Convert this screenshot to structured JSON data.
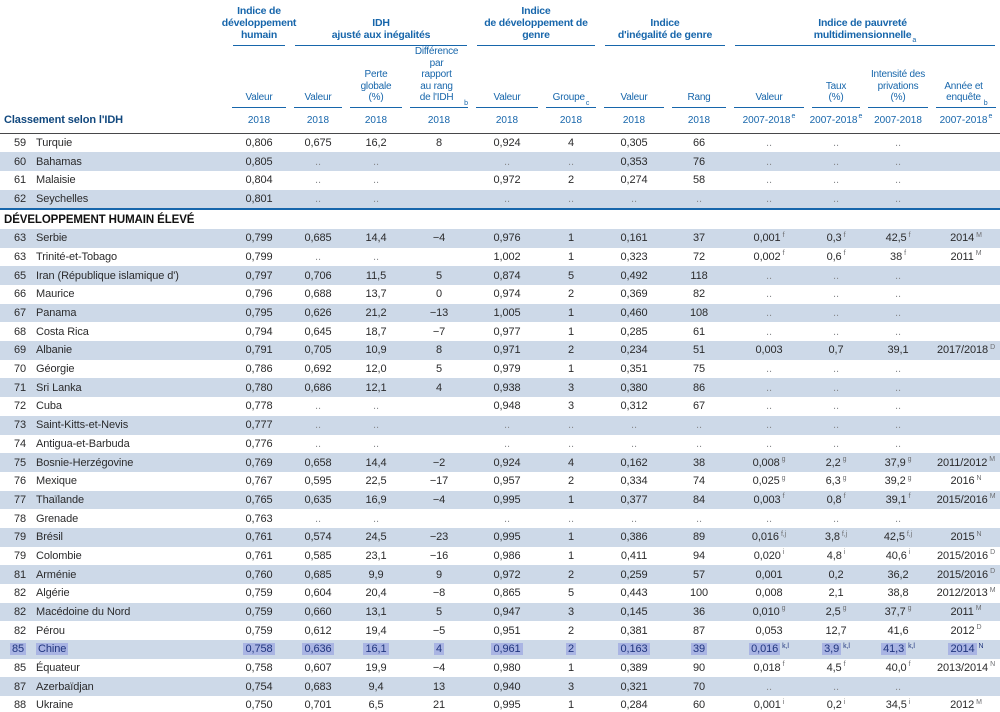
{
  "colors": {
    "header_blue": "#1766ab",
    "stripe": "#cdd9e8",
    "highlight_bg": "#a9b4e3",
    "highlight_text": "#20357e",
    "dark_rule": "#47484a"
  },
  "table": {
    "corner_label": "Classement selon l'IDH",
    "groups": [
      {
        "title": "Indice de\ndéveloppement\nhumain",
        "sup": ""
      },
      {
        "title": "IDH\najusté aux inégalités",
        "sup": ""
      },
      {
        "title": "Indice\nde développement de genre",
        "sup": ""
      },
      {
        "title": "Indice\nd'inégalité de genre",
        "sup": ""
      },
      {
        "title": "Indice de pauvreté\nmultidimensionnelle",
        "sup": "a"
      }
    ],
    "columns": [
      {
        "label": "Valeur",
        "sup": "",
        "year": "2018",
        "year_sup": ""
      },
      {
        "label": "Valeur",
        "sup": "",
        "year": "2018",
        "year_sup": ""
      },
      {
        "label": "Perte globale\n(%)",
        "sup": "",
        "year": "2018",
        "year_sup": ""
      },
      {
        "label": "Différence par\nrapport\nau rang\nde l'IDH",
        "sup": "b",
        "year": "2018",
        "year_sup": ""
      },
      {
        "label": "Valeur",
        "sup": "",
        "year": "2018",
        "year_sup": ""
      },
      {
        "label": "Groupe",
        "sup": "c",
        "year": "2018",
        "year_sup": ""
      },
      {
        "label": "Valeur",
        "sup": "",
        "year": "2018",
        "year_sup": ""
      },
      {
        "label": "Rang",
        "sup": "",
        "year": "2018",
        "year_sup": ""
      },
      {
        "label": "Valeur",
        "sup": "",
        "year": "2007-2018",
        "year_sup": "e"
      },
      {
        "label": "Taux\n(%)",
        "sup": "",
        "year": "2007-2018",
        "year_sup": "e"
      },
      {
        "label": "Intensité des\nprivations\n(%)",
        "sup": "",
        "year": "2007-2018",
        "year_sup": ""
      },
      {
        "label": "Année et\nenquête",
        "sup": "b",
        "year": "2007-2018",
        "year_sup": "e"
      }
    ],
    "rows": [
      {
        "rank": "59",
        "country": "Turquie",
        "stripe": false,
        "values": [
          "0,806",
          "0,675",
          "16,2",
          "8",
          "0,924",
          "4",
          "0,305",
          "66",
          "..",
          "..",
          "..",
          ""
        ]
      },
      {
        "rank": "60",
        "country": "Bahamas",
        "stripe": true,
        "values": [
          "0,805",
          "..",
          "..",
          "",
          "..",
          "..",
          "0,353",
          "76",
          "..",
          "..",
          "..",
          ""
        ]
      },
      {
        "rank": "61",
        "country": "Malaisie",
        "stripe": false,
        "values": [
          "0,804",
          "..",
          "..",
          "",
          "0,972",
          "2",
          "0,274",
          "58",
          "..",
          "..",
          "..",
          ""
        ]
      },
      {
        "rank": "62",
        "country": "Seychelles",
        "stripe": true,
        "divider": true,
        "values": [
          "0,801",
          "..",
          "..",
          "",
          "..",
          "..",
          "..",
          "..",
          "..",
          "..",
          "..",
          ""
        ]
      },
      {
        "section": "DÉVELOPPEMENT HUMAIN ÉLEVÉ"
      },
      {
        "rank": "63",
        "country": "Serbie",
        "stripe": true,
        "values": [
          "0,799",
          "0,685",
          "14,4",
          "−4",
          "0,976",
          "1",
          "0,161",
          "37",
          "0,001^f",
          "0,3^f",
          "42,5^f",
          "2014^M"
        ]
      },
      {
        "rank": "63",
        "country": "Trinité-et-Tobago",
        "stripe": false,
        "values": [
          "0,799",
          "..",
          "..",
          "",
          "1,002",
          "1",
          "0,323",
          "72",
          "0,002^f",
          "0,6^f",
          "38^f",
          "2011^M"
        ]
      },
      {
        "rank": "65",
        "country": "Iran (République islamique d')",
        "stripe": true,
        "values": [
          "0,797",
          "0,706",
          "11,5",
          "5",
          "0,874",
          "5",
          "0,492",
          "118",
          "..",
          "..",
          "..",
          ""
        ]
      },
      {
        "rank": "66",
        "country": "Maurice",
        "stripe": false,
        "values": [
          "0,796",
          "0,688",
          "13,7",
          "0",
          "0,974",
          "2",
          "0,369",
          "82",
          "..",
          "..",
          "..",
          ""
        ]
      },
      {
        "rank": "67",
        "country": "Panama",
        "stripe": true,
        "values": [
          "0,795",
          "0,626",
          "21,2",
          "−13",
          "1,005",
          "1",
          "0,460",
          "108",
          "..",
          "..",
          "..",
          ""
        ]
      },
      {
        "rank": "68",
        "country": "Costa Rica",
        "stripe": false,
        "values": [
          "0,794",
          "0,645",
          "18,7",
          "−7",
          "0,977",
          "1",
          "0,285",
          "61",
          "..",
          "..",
          "..",
          ""
        ]
      },
      {
        "rank": "69",
        "country": "Albanie",
        "stripe": true,
        "values": [
          "0,791",
          "0,705",
          "10,9",
          "8",
          "0,971",
          "2",
          "0,234",
          "51",
          "0,003",
          "0,7",
          "39,1",
          "2017/2018^D"
        ]
      },
      {
        "rank": "70",
        "country": "Géorgie",
        "stripe": false,
        "values": [
          "0,786",
          "0,692",
          "12,0",
          "5",
          "0,979",
          "1",
          "0,351",
          "75",
          "..",
          "..",
          "..",
          ""
        ]
      },
      {
        "rank": "71",
        "country": "Sri Lanka",
        "stripe": true,
        "values": [
          "0,780",
          "0,686",
          "12,1",
          "4",
          "0,938",
          "3",
          "0,380",
          "86",
          "..",
          "..",
          "..",
          ""
        ]
      },
      {
        "rank": "72",
        "country": "Cuba",
        "stripe": false,
        "values": [
          "0,778",
          "..",
          "..",
          "",
          "0,948",
          "3",
          "0,312",
          "67",
          "..",
          "..",
          "..",
          ""
        ]
      },
      {
        "rank": "73",
        "country": "Saint-Kitts-et-Nevis",
        "stripe": true,
        "values": [
          "0,777",
          "..",
          "..",
          "",
          "..",
          "..",
          "..",
          "..",
          "..",
          "..",
          "..",
          ""
        ]
      },
      {
        "rank": "74",
        "country": "Antigua-et-Barbuda",
        "stripe": false,
        "values": [
          "0,776",
          "..",
          "..",
          "",
          "..",
          "..",
          "..",
          "..",
          "..",
          "..",
          "..",
          ""
        ]
      },
      {
        "rank": "75",
        "country": "Bosnie-Herzégovine",
        "stripe": true,
        "values": [
          "0,769",
          "0,658",
          "14,4",
          "−2",
          "0,924",
          "4",
          "0,162",
          "38",
          "0,008^g",
          "2,2^g",
          "37,9^g",
          "2011/2012^M"
        ]
      },
      {
        "rank": "76",
        "country": "Mexique",
        "stripe": false,
        "values": [
          "0,767",
          "0,595",
          "22,5",
          "−17",
          "0,957",
          "2",
          "0,334",
          "74",
          "0,025^g",
          "6,3^g",
          "39,2^g",
          "2016^N"
        ]
      },
      {
        "rank": "77",
        "country": "Thaïlande",
        "stripe": true,
        "values": [
          "0,765",
          "0,635",
          "16,9",
          "−4",
          "0,995",
          "1",
          "0,377",
          "84",
          "0,003^f",
          "0,8^f",
          "39,1^f",
          "2015/2016^M"
        ]
      },
      {
        "rank": "78",
        "country": "Grenade",
        "stripe": false,
        "values": [
          "0,763",
          "..",
          "..",
          "",
          "..",
          "..",
          "..",
          "..",
          "..",
          "..",
          "..",
          ""
        ]
      },
      {
        "rank": "79",
        "country": "Brésil",
        "stripe": true,
        "values": [
          "0,761",
          "0,574",
          "24,5",
          "−23",
          "0,995",
          "1",
          "0,386",
          "89",
          "0,016^f,j",
          "3,8^f,j",
          "42,5^f,j",
          "2015^N"
        ]
      },
      {
        "rank": "79",
        "country": "Colombie",
        "stripe": false,
        "values": [
          "0,761",
          "0,585",
          "23,1",
          "−16",
          "0,986",
          "1",
          "0,411",
          "94",
          "0,020^i",
          "4,8^i",
          "40,6^i",
          "2015/2016^D"
        ]
      },
      {
        "rank": "81",
        "country": "Arménie",
        "stripe": true,
        "values": [
          "0,760",
          "0,685",
          "9,9",
          "9",
          "0,972",
          "2",
          "0,259",
          "57",
          "0,001",
          "0,2",
          "36,2",
          "2015/2016^D"
        ]
      },
      {
        "rank": "82",
        "country": "Algérie",
        "stripe": false,
        "values": [
          "0,759",
          "0,604",
          "20,4",
          "−8",
          "0,865",
          "5",
          "0,443",
          "100",
          "0,008",
          "2,1",
          "38,8",
          "2012/2013^M"
        ]
      },
      {
        "rank": "82",
        "country": "Macédoine du Nord",
        "stripe": true,
        "values": [
          "0,759",
          "0,660",
          "13,1",
          "5",
          "0,947",
          "3",
          "0,145",
          "36",
          "0,010^g",
          "2,5^g",
          "37,7^g",
          "2011^M"
        ]
      },
      {
        "rank": "82",
        "country": "Pérou",
        "stripe": false,
        "values": [
          "0,759",
          "0,612",
          "19,4",
          "−5",
          "0,951",
          "2",
          "0,381",
          "87",
          "0,053",
          "12,7",
          "41,6",
          "2012^D"
        ]
      },
      {
        "rank": "85",
        "country": "Chine",
        "stripe": true,
        "highlight": true,
        "values": [
          "0,758",
          "0,636",
          "16,1",
          "4",
          "0,961",
          "2",
          "0,163",
          "39",
          "0,016^k,l",
          "3,9^k,l",
          "41,3^k,l",
          "2014^N"
        ]
      },
      {
        "rank": "85",
        "country": "Équateur",
        "stripe": false,
        "values": [
          "0,758",
          "0,607",
          "19,9",
          "−4",
          "0,980",
          "1",
          "0,389",
          "90",
          "0,018^f",
          "4,5^f",
          "40,0^f",
          "2013/2014^N"
        ]
      },
      {
        "rank": "87",
        "country": "Azerbaïdjan",
        "stripe": true,
        "values": [
          "0,754",
          "0,683",
          "9,4",
          "13",
          "0,940",
          "3",
          "0,321",
          "70",
          "..",
          "..",
          "..",
          ""
        ]
      },
      {
        "rank": "88",
        "country": "Ukraine",
        "stripe": false,
        "values": [
          "0,750",
          "0,701",
          "6,5",
          "21",
          "0,995",
          "1",
          "0,284",
          "60",
          "0,001^i",
          "0,2^i",
          "34,5^i",
          "2012^M"
        ]
      }
    ]
  }
}
